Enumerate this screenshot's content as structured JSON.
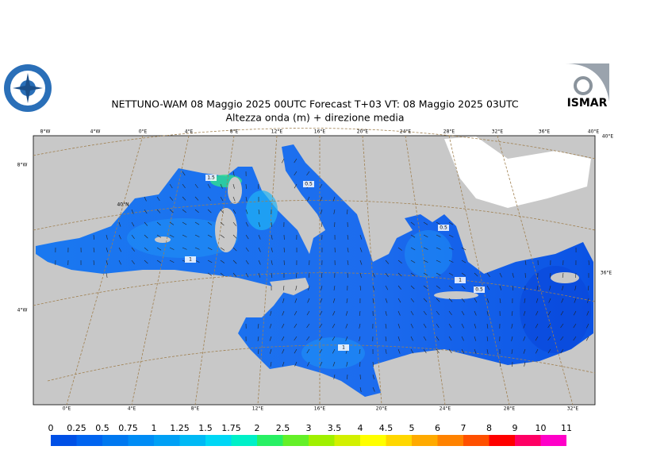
{
  "header": {
    "title": "NETTUNO-WAM  08   Maggio  2025 00UTC Forecast T+03 VT: 08   Maggio  2025 03UTC",
    "subtitle": "Altezza onda (m) + direzione media"
  },
  "logos": {
    "right": "ISMAR"
  },
  "map": {
    "top_labels": [
      "8°W",
      "4°W",
      "0°E",
      "4°E",
      "8°E",
      "12°E",
      "16°E",
      "20°E",
      "24°E",
      "28°E",
      "32°E",
      "36°E",
      "40°E"
    ],
    "bottom_labels": [
      "0°E",
      "4°E",
      "8°E",
      "12°E",
      "16°E",
      "20°E",
      "24°E",
      "28°E",
      "32°E"
    ],
    "left_labels": [
      "8°W",
      "4°W"
    ],
    "right_labels": [
      "40°E",
      "36°E"
    ],
    "inner_labels": [
      "40°N"
    ],
    "contour_labels": [
      "1.5",
      "0.5",
      "0.5",
      "1",
      "1",
      "0.5",
      "1"
    ]
  },
  "legend": {
    "labels": [
      "0",
      "0.25",
      "0.5",
      "0.75",
      "1",
      "1.25",
      "1.5",
      "1.75",
      "2",
      "2.5",
      "3",
      "3.5",
      "4",
      "4.5",
      "5",
      "6",
      "7",
      "8",
      "9",
      "10",
      "11"
    ],
    "colors": [
      "#0050e6",
      "#0064f0",
      "#0078f0",
      "#008cf5",
      "#00a0f5",
      "#00b9f5",
      "#00d7f5",
      "#00f0c8",
      "#28f064",
      "#64f028",
      "#a0f000",
      "#d2f000",
      "#ffff00",
      "#ffd700",
      "#ffaa00",
      "#ff8200",
      "#ff5000",
      "#ff0000",
      "#ff0064",
      "#ff00c8"
    ]
  }
}
